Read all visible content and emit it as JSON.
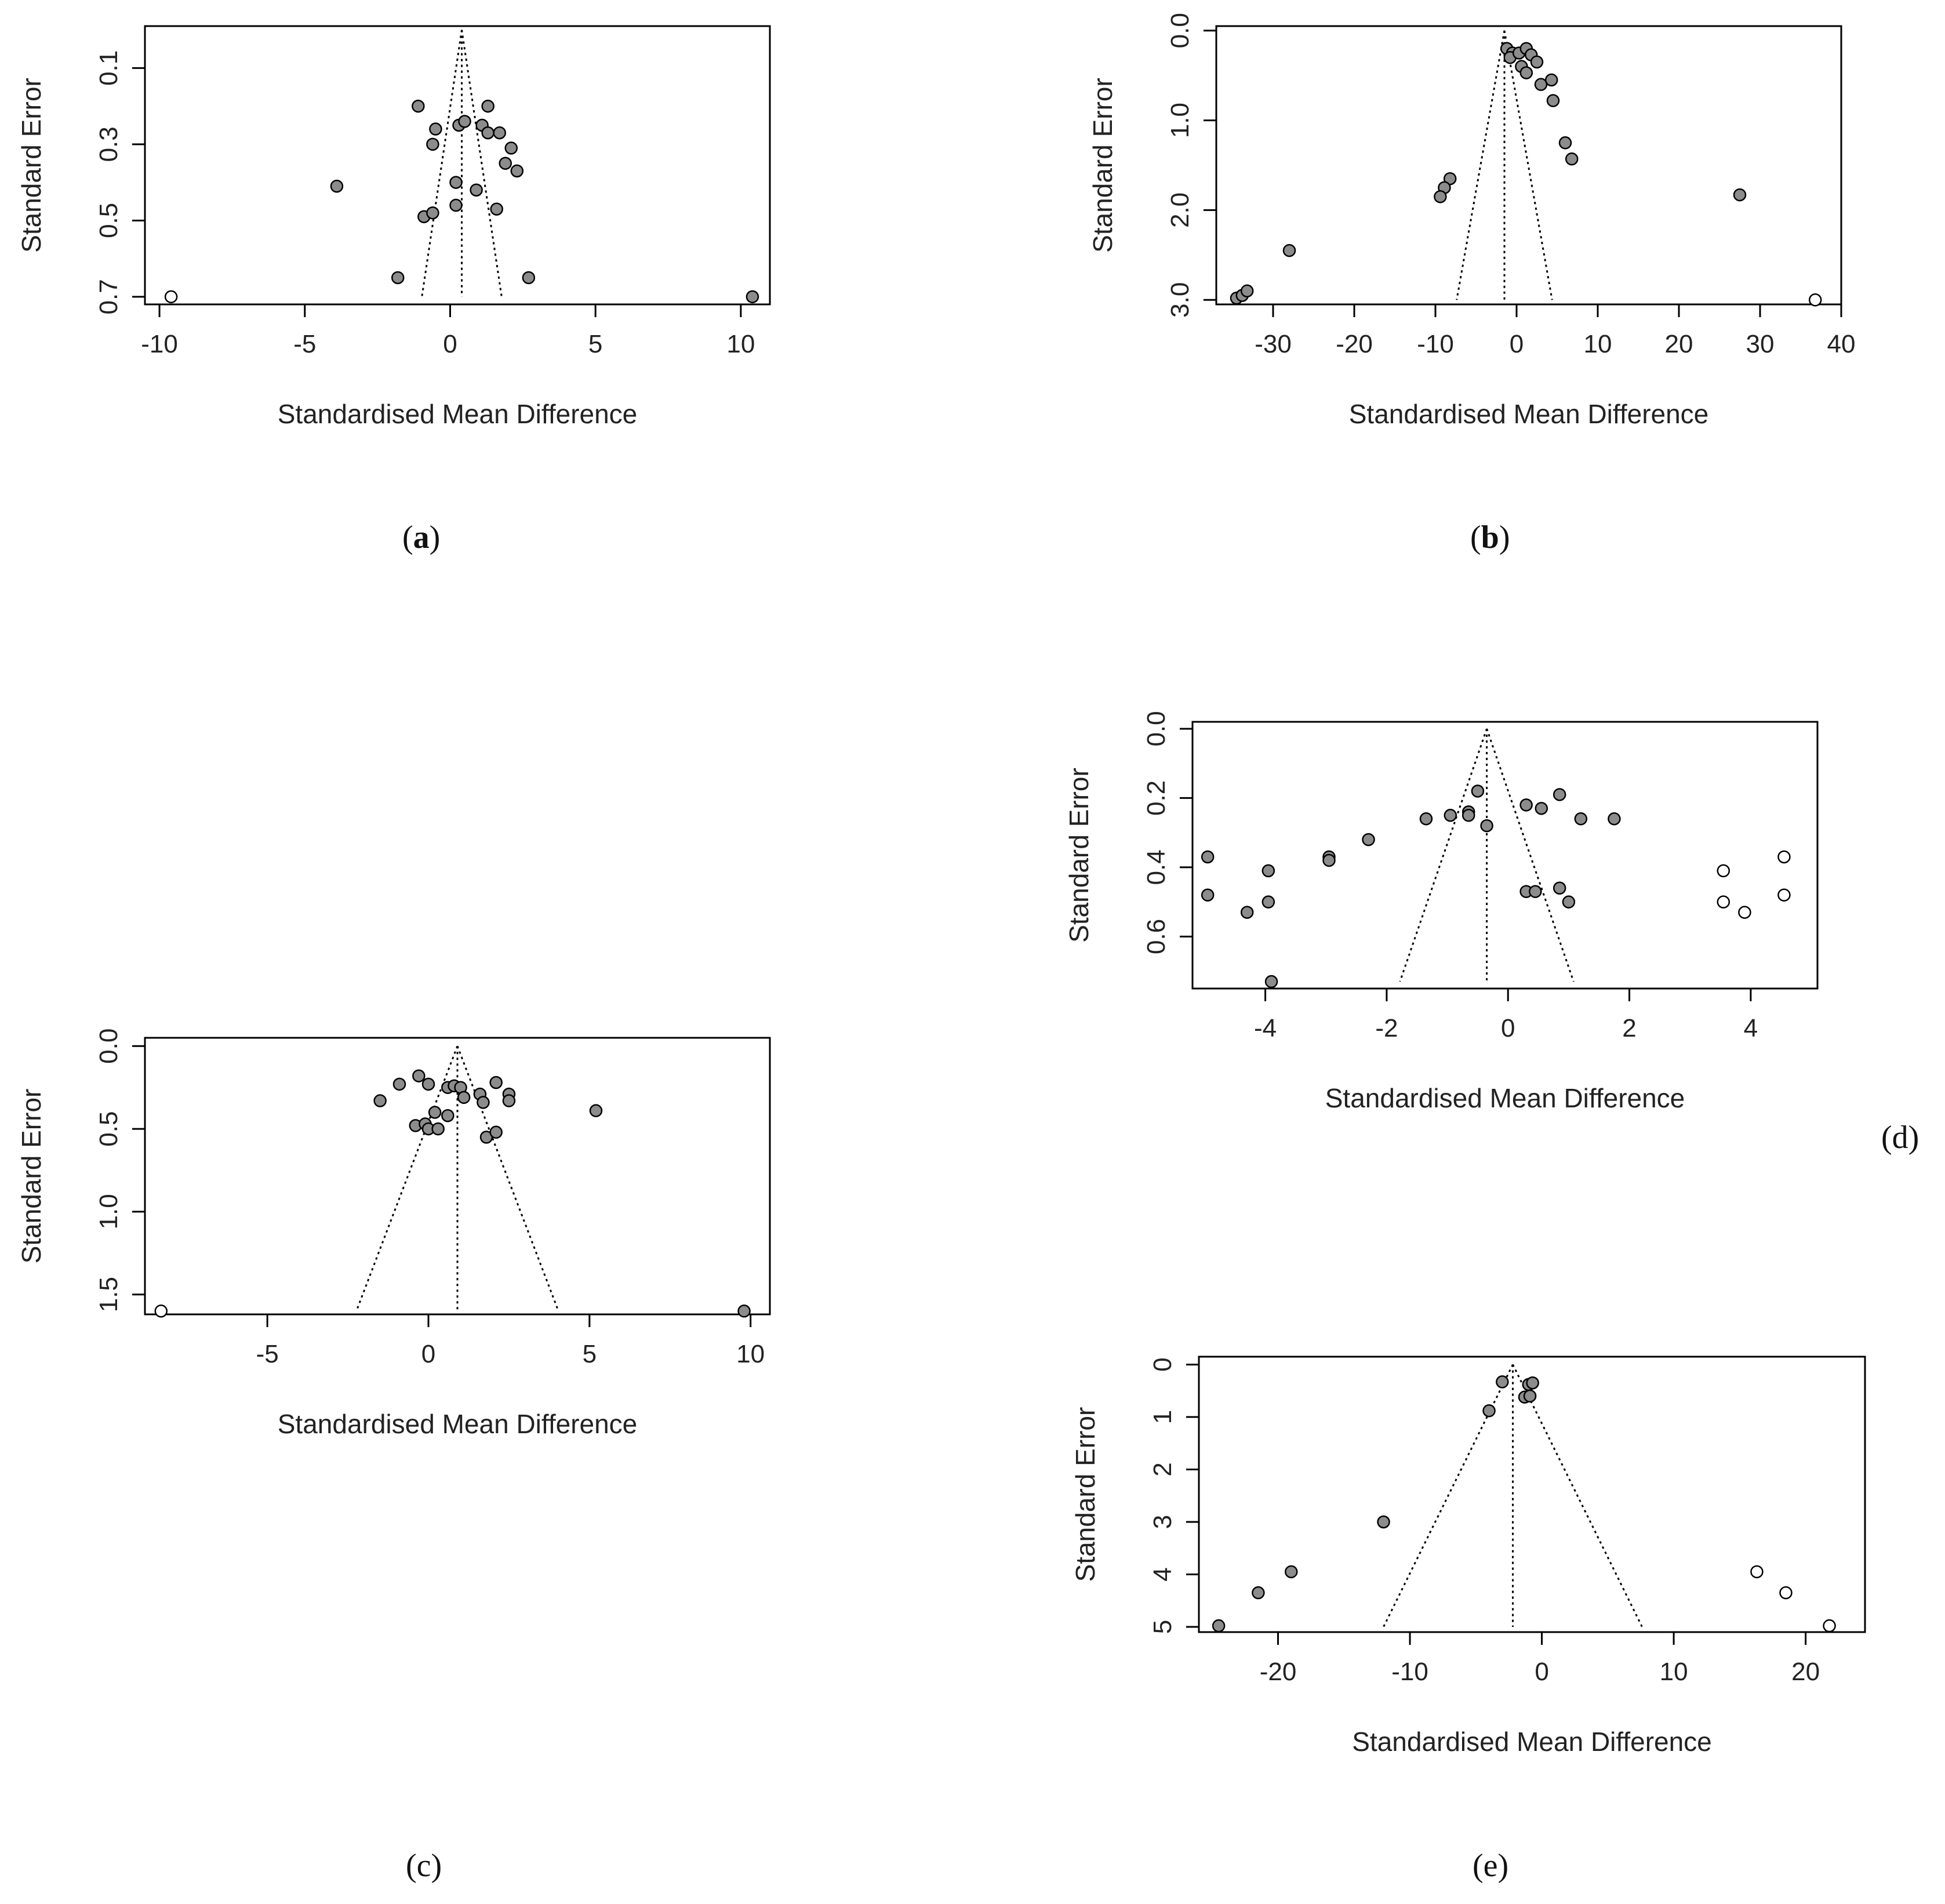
{
  "chart_data": [
    {
      "id": "a",
      "type": "scatter",
      "caption": "a",
      "caption_bold": true,
      "xlabel": "Standardised Mean Difference",
      "ylabel": "Standard Error",
      "xlim": [
        -10.5,
        11
      ],
      "ylim": [
        0.72,
        -0.01
      ],
      "y_reversed": true,
      "xticks": [
        -10,
        -5,
        0,
        5,
        10
      ],
      "yticks": [
        0.1,
        0.3,
        0.5,
        0.7
      ],
      "ytick_labels": [
        "0.1",
        "0.3",
        "0.5",
        "0.7"
      ],
      "grid": false,
      "funnel": {
        "center": 0.4,
        "se_max": 0.7
      },
      "points": [
        {
          "x": -1.1,
          "y": 0.2
        },
        {
          "x": -0.5,
          "y": 0.26
        },
        {
          "x": -0.6,
          "y": 0.3
        },
        {
          "x": 0.3,
          "y": 0.25
        },
        {
          "x": 0.5,
          "y": 0.24
        },
        {
          "x": 1.1,
          "y": 0.25
        },
        {
          "x": 1.3,
          "y": 0.27
        },
        {
          "x": 1.3,
          "y": 0.2
        },
        {
          "x": 1.7,
          "y": 0.27
        },
        {
          "x": 2.1,
          "y": 0.31
        },
        {
          "x": 1.9,
          "y": 0.35
        },
        {
          "x": 2.3,
          "y": 0.37
        },
        {
          "x": -3.9,
          "y": 0.41
        },
        {
          "x": 0.2,
          "y": 0.4
        },
        {
          "x": 0.9,
          "y": 0.42
        },
        {
          "x": 0.2,
          "y": 0.46
        },
        {
          "x": 1.6,
          "y": 0.47
        },
        {
          "x": -0.9,
          "y": 0.49
        },
        {
          "x": -0.6,
          "y": 0.48
        },
        {
          "x": -1.8,
          "y": 0.65
        },
        {
          "x": 2.7,
          "y": 0.65
        },
        {
          "x": 10.4,
          "y": 0.7
        }
      ],
      "imputed_points": [
        {
          "x": -9.6,
          "y": 0.7
        }
      ]
    },
    {
      "id": "b",
      "type": "scatter",
      "caption": "b",
      "caption_bold": true,
      "xlabel": "Standardised Mean Difference",
      "ylabel": "Standard Error",
      "xlim": [
        -37,
        40
      ],
      "ylim": [
        3.05,
        -0.05
      ],
      "y_reversed": true,
      "xticks": [
        -30,
        -20,
        -10,
        0,
        10,
        20,
        30,
        40
      ],
      "yticks": [
        0,
        1,
        2,
        3
      ],
      "ytick_labels": [
        "0.0",
        "1.0",
        "2.0",
        "3.0"
      ],
      "grid": false,
      "funnel": {
        "center": -1.5,
        "se_max": 3.0
      },
      "points": [
        {
          "x": -1.2,
          "y": 0.2
        },
        {
          "x": -0.5,
          "y": 0.25
        },
        {
          "x": -0.8,
          "y": 0.3
        },
        {
          "x": 0.3,
          "y": 0.25
        },
        {
          "x": 1.2,
          "y": 0.2
        },
        {
          "x": 1.8,
          "y": 0.27
        },
        {
          "x": 2.5,
          "y": 0.35
        },
        {
          "x": 0.6,
          "y": 0.4
        },
        {
          "x": 1.2,
          "y": 0.47
        },
        {
          "x": 3.0,
          "y": 0.6
        },
        {
          "x": 4.3,
          "y": 0.55
        },
        {
          "x": 4.5,
          "y": 0.78
        },
        {
          "x": 6.0,
          "y": 1.25
        },
        {
          "x": 6.8,
          "y": 1.43
        },
        {
          "x": 27.5,
          "y": 1.83
        },
        {
          "x": -8.2,
          "y": 1.65
        },
        {
          "x": -8.9,
          "y": 1.75
        },
        {
          "x": -9.4,
          "y": 1.85
        },
        {
          "x": -28,
          "y": 2.45
        },
        {
          "x": -34.5,
          "y": 2.98
        },
        {
          "x": -33.8,
          "y": 2.95
        },
        {
          "x": -33.2,
          "y": 2.9
        }
      ],
      "imputed_points": [
        {
          "x": 36.8,
          "y": 3.0
        }
      ]
    },
    {
      "id": "c",
      "type": "scatter",
      "caption": "c",
      "caption_bold": false,
      "xlabel": "Standardised Mean Difference",
      "ylabel": "Standard Error",
      "xlim": [
        -8.8,
        10.6
      ],
      "ylim": [
        1.62,
        -0.05
      ],
      "y_reversed": true,
      "xticks": [
        -5,
        0,
        5,
        10
      ],
      "yticks": [
        0,
        0.5,
        1,
        1.5
      ],
      "ytick_labels": [
        "0.0",
        "0.5",
        "1.0",
        "1.5"
      ],
      "grid": false,
      "funnel": {
        "center": 0.9,
        "se_max": 1.6
      },
      "points": [
        {
          "x": -1.5,
          "y": 0.33
        },
        {
          "x": -0.9,
          "y": 0.23
        },
        {
          "x": -0.3,
          "y": 0.18
        },
        {
          "x": 0.0,
          "y": 0.23
        },
        {
          "x": 0.6,
          "y": 0.25
        },
        {
          "x": 0.8,
          "y": 0.24
        },
        {
          "x": 1.0,
          "y": 0.25
        },
        {
          "x": 1.6,
          "y": 0.29
        },
        {
          "x": 2.1,
          "y": 0.22
        },
        {
          "x": 2.5,
          "y": 0.29
        },
        {
          "x": 2.5,
          "y": 0.33
        },
        {
          "x": 1.7,
          "y": 0.34
        },
        {
          "x": 1.1,
          "y": 0.31
        },
        {
          "x": 0.2,
          "y": 0.4
        },
        {
          "x": 0.6,
          "y": 0.42
        },
        {
          "x": -0.4,
          "y": 0.48
        },
        {
          "x": -0.1,
          "y": 0.47
        },
        {
          "x": 0.0,
          "y": 0.5
        },
        {
          "x": 0.3,
          "y": 0.5
        },
        {
          "x": 1.8,
          "y": 0.55
        },
        {
          "x": 2.1,
          "y": 0.52
        },
        {
          "x": 5.2,
          "y": 0.39
        },
        {
          "x": 9.8,
          "y": 1.6
        }
      ],
      "imputed_points": [
        {
          "x": -8.3,
          "y": 1.6
        }
      ]
    },
    {
      "id": "d",
      "type": "scatter",
      "caption": "d",
      "caption_bold": false,
      "xlabel": "Standardised Mean Difference",
      "ylabel": "Standard Error",
      "xlim": [
        -5.2,
        5.1
      ],
      "ylim": [
        0.75,
        -0.02
      ],
      "y_reversed": true,
      "xticks": [
        -4,
        -2,
        0,
        2,
        4
      ],
      "yticks": [
        0,
        0.2,
        0.4,
        0.6
      ],
      "ytick_labels": [
        "0.0",
        "0.2",
        "0.4",
        "0.6"
      ],
      "grid": false,
      "funnel": {
        "center": -0.35,
        "se_max": 0.73
      },
      "points": [
        {
          "x": -4.95,
          "y": 0.37
        },
        {
          "x": -4.95,
          "y": 0.48
        },
        {
          "x": -4.3,
          "y": 0.53
        },
        {
          "x": -3.95,
          "y": 0.41
        },
        {
          "x": -3.95,
          "y": 0.5
        },
        {
          "x": -3.9,
          "y": 0.73
        },
        {
          "x": -2.95,
          "y": 0.37
        },
        {
          "x": -2.95,
          "y": 0.38
        },
        {
          "x": -2.3,
          "y": 0.32
        },
        {
          "x": -1.35,
          "y": 0.26
        },
        {
          "x": -0.95,
          "y": 0.25
        },
        {
          "x": -0.65,
          "y": 0.24
        },
        {
          "x": -0.65,
          "y": 0.25
        },
        {
          "x": -0.5,
          "y": 0.18
        },
        {
          "x": -0.35,
          "y": 0.28
        },
        {
          "x": 0.3,
          "y": 0.22
        },
        {
          "x": 0.55,
          "y": 0.23
        },
        {
          "x": 0.85,
          "y": 0.19
        },
        {
          "x": 1.2,
          "y": 0.26
        },
        {
          "x": 1.75,
          "y": 0.26
        },
        {
          "x": 0.3,
          "y": 0.47
        },
        {
          "x": 0.45,
          "y": 0.47
        },
        {
          "x": 0.85,
          "y": 0.46
        },
        {
          "x": 1.0,
          "y": 0.5
        }
      ],
      "imputed_points": [
        {
          "x": 3.55,
          "y": 0.41
        },
        {
          "x": 3.55,
          "y": 0.5
        },
        {
          "x": 3.9,
          "y": 0.53
        },
        {
          "x": 4.55,
          "y": 0.37
        },
        {
          "x": 4.55,
          "y": 0.48
        }
      ]
    },
    {
      "id": "e",
      "type": "scatter",
      "caption": "e",
      "caption_bold": false,
      "xlabel": "Standardised Mean Difference",
      "ylabel": "Standard Error",
      "xlim": [
        -26,
        24.5
      ],
      "ylim": [
        5.1,
        -0.15
      ],
      "y_reversed": true,
      "xticks": [
        -20,
        -10,
        0,
        10,
        20
      ],
      "yticks": [
        0,
        1,
        2,
        3,
        4,
        5
      ],
      "ytick_labels": [
        "0",
        "1",
        "2",
        "3",
        "4",
        "5"
      ],
      "grid": false,
      "funnel": {
        "center": -2.2,
        "se_max": 5.0
      },
      "points": [
        {
          "x": -3.0,
          "y": 0.33
        },
        {
          "x": -1.0,
          "y": 0.38
        },
        {
          "x": -0.7,
          "y": 0.35
        },
        {
          "x": -1.3,
          "y": 0.62
        },
        {
          "x": -0.9,
          "y": 0.6
        },
        {
          "x": -4.0,
          "y": 0.88
        },
        {
          "x": -12.0,
          "y": 3.0
        },
        {
          "x": -19.0,
          "y": 3.95
        },
        {
          "x": -21.5,
          "y": 4.35
        },
        {
          "x": -24.5,
          "y": 4.98
        }
      ],
      "imputed_points": [
        {
          "x": 16.3,
          "y": 3.95
        },
        {
          "x": 18.5,
          "y": 4.35
        },
        {
          "x": 21.8,
          "y": 4.98
        }
      ]
    }
  ]
}
